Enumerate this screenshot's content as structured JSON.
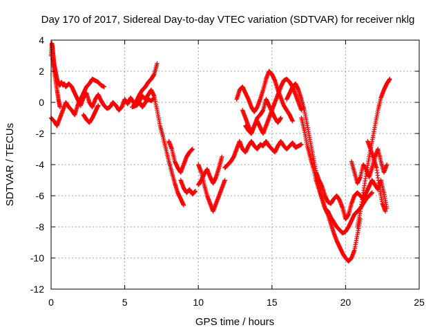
{
  "chart_data": {
    "type": "scatter",
    "title": "Day 170 of 2017, Sidereal Day-to-day VTEC variation (SDTVAR) for receiver nklg",
    "xlabel": "GPS time / hours",
    "ylabel": "SDTVAR / TECUs",
    "xlim": [
      0,
      25
    ],
    "ylim": [
      -12,
      4
    ],
    "x_ticks": [
      0,
      5,
      10,
      15,
      20,
      25
    ],
    "y_ticks": [
      -12,
      -10,
      -8,
      -6,
      -4,
      -2,
      0,
      2,
      4
    ],
    "grid": true,
    "marker": "+",
    "color": "#ff0000",
    "series": [
      {
        "x": [
          0.0,
          0.05,
          0.1,
          0.15,
          0.2,
          0.3,
          0.4,
          0.5,
          0.6,
          0.7,
          0.8,
          0.9,
          1.0,
          1.2,
          1.4,
          1.6,
          1.8,
          2.0,
          2.2,
          2.4,
          2.6,
          2.8,
          3.0,
          3.2,
          3.4,
          3.6,
          3.8,
          4.0,
          4.2,
          4.4,
          4.6,
          4.8,
          5.0,
          5.2,
          5.4,
          5.6,
          5.8,
          6.0,
          6.2,
          6.4,
          6.6,
          6.8,
          7.0,
          7.2,
          7.4,
          7.6,
          7.8,
          8.0,
          8.2,
          8.4,
          8.6,
          8.8,
          9.0
        ],
        "y": [
          3.0,
          3.8,
          3.5,
          3.0,
          2.5,
          2.0,
          1.5,
          1.2,
          1.1,
          1.3,
          1.1,
          1.2,
          1.0,
          1.2,
          1.0,
          0.6,
          0.2,
          -0.2,
          0.3,
          0.6,
          0.0,
          -0.3,
          0.2,
          0.5,
          0.1,
          -0.2,
          -0.4,
          -0.3,
          0.0,
          -0.2,
          -0.5,
          -0.3,
          0.2,
          -0.1,
          0.3,
          0.0,
          -0.2,
          0.1,
          0.4,
          0.2,
          0.5,
          0.8,
          0.4,
          -0.5,
          -1.5,
          -2.2,
          -3.0,
          -3.8,
          -4.5,
          -5.2,
          -5.8,
          -6.2,
          -6.6
        ]
      },
      {
        "x": [
          0.0,
          0.2,
          0.4,
          0.6,
          0.8,
          1.0,
          1.2,
          1.4,
          1.6,
          1.8,
          2.0,
          2.2,
          2.4,
          2.6,
          2.8,
          3.0,
          3.2,
          3.4,
          3.6
        ],
        "y": [
          -1.0,
          -1.2,
          -1.5,
          -1.0,
          -0.5,
          0.0,
          -0.3,
          -0.5,
          -0.8,
          -0.2,
          0.2,
          0.6,
          1.0,
          1.2,
          1.5,
          1.4,
          1.3,
          1.1,
          1.0
        ]
      },
      {
        "x": [
          0.1,
          0.2,
          0.3,
          0.4,
          0.5,
          0.6
        ],
        "y": [
          2.8,
          2.2,
          1.5,
          0.8,
          0.2,
          -0.3
        ]
      },
      {
        "x": [
          2.2,
          2.4,
          2.6,
          2.8,
          3.0,
          3.2
        ],
        "y": [
          -0.8,
          -1.1,
          -1.3,
          -1.0,
          -0.6,
          -0.2
        ]
      },
      {
        "x": [
          5.6,
          5.8,
          6.0,
          6.2,
          6.4,
          6.6,
          6.8,
          7.0,
          7.2
        ],
        "y": [
          -0.2,
          0.1,
          0.5,
          0.8,
          1.0,
          1.3,
          1.5,
          1.8,
          2.5
        ]
      },
      {
        "x": [
          5.5,
          5.8,
          6.0,
          6.2,
          6.4,
          6.6,
          6.8,
          7.0
        ],
        "y": [
          -0.3,
          -0.2,
          0.0,
          -0.3,
          0.0,
          0.2,
          0.1,
          0.3
        ]
      },
      {
        "x": [
          8.0,
          8.2,
          8.4,
          8.6,
          8.8,
          9.0,
          9.2,
          9.4,
          9.6
        ],
        "y": [
          -2.5,
          -3.0,
          -3.8,
          -4.2,
          -4.5,
          -4.0,
          -3.5,
          -3.2,
          -3.0
        ]
      },
      {
        "x": [
          8.8,
          9.0,
          9.2,
          9.4,
          9.6,
          9.8
        ],
        "y": [
          -5.0,
          -5.5,
          -5.8,
          -5.6,
          -5.9,
          -5.7
        ]
      },
      {
        "x": [
          10.0,
          10.2,
          10.4,
          10.6,
          10.8,
          11.0,
          11.2,
          11.4,
          11.6,
          11.8
        ],
        "y": [
          -4.0,
          -4.5,
          -5.3,
          -6.0,
          -6.5,
          -7.0,
          -6.5,
          -6.0,
          -5.5,
          -5.0
        ]
      },
      {
        "x": [
          10.0,
          10.2,
          10.4,
          10.6,
          10.8,
          11.0,
          11.2,
          11.4,
          11.6
        ],
        "y": [
          -5.3,
          -5.0,
          -4.6,
          -4.3,
          -4.8,
          -5.2,
          -4.8,
          -4.2,
          -3.5
        ]
      },
      {
        "x": [
          11.8,
          12.0,
          12.2,
          12.4,
          12.6,
          12.8,
          13.0,
          13.2,
          13.4,
          13.6,
          13.8,
          14.0,
          14.2,
          14.4,
          14.6,
          14.8,
          15.0,
          15.2,
          15.4,
          15.6,
          15.8,
          16.0,
          16.2,
          16.4,
          16.6,
          16.8,
          17.0
        ],
        "y": [
          -4.2,
          -4.0,
          -3.8,
          -3.5,
          -3.0,
          -2.5,
          -3.0,
          -3.2,
          -2.8,
          -2.5,
          -2.8,
          -3.0,
          -2.7,
          -2.8,
          -2.5,
          -2.8,
          -3.0,
          -3.2,
          -2.8,
          -2.5,
          -2.8,
          -3.0,
          -2.8,
          -2.6,
          -2.9,
          -2.8,
          -2.7
        ]
      },
      {
        "x": [
          12.6,
          12.8,
          13.0,
          13.2,
          13.4,
          13.6,
          13.8,
          14.0,
          14.2,
          14.4,
          14.6,
          14.8,
          15.0,
          15.2,
          15.4,
          15.6,
          15.8,
          16.0,
          16.2,
          16.4
        ],
        "y": [
          0.2,
          0.8,
          1.0,
          0.6,
          0.2,
          -0.3,
          -0.6,
          -0.3,
          0.2,
          0.8,
          1.5,
          2.0,
          1.8,
          1.4,
          0.8,
          0.3,
          -0.2,
          -0.5,
          -0.8,
          -1.2
        ]
      },
      {
        "x": [
          13.0,
          13.2,
          13.4,
          13.6,
          13.8,
          14.0,
          14.2,
          14.4,
          14.6,
          14.8,
          15.0,
          15.2,
          15.4,
          15.6,
          15.8,
          16.0,
          16.2,
          16.4,
          16.6,
          16.8,
          17.0
        ],
        "y": [
          -0.5,
          -1.0,
          -1.5,
          -2.0,
          -1.5,
          -1.2,
          -1.6,
          -2.0,
          -1.5,
          -1.0,
          -0.5,
          0.0,
          0.5,
          1.0,
          1.4,
          1.5,
          1.3,
          1.0,
          0.5,
          0.0,
          -0.5
        ]
      },
      {
        "x": [
          13.2,
          13.4,
          13.6,
          13.8,
          14.0,
          14.2,
          14.4,
          14.6,
          14.8,
          15.0,
          15.2,
          15.4,
          15.6
        ],
        "y": [
          -1.5,
          -1.8,
          -2.0,
          -1.5,
          -1.0,
          -0.8,
          -0.5,
          0.2,
          -0.2,
          -0.6,
          -1.0,
          -1.3,
          -1.0
        ]
      },
      {
        "x": [
          16.0,
          16.2,
          16.4,
          16.6,
          16.8,
          17.0,
          17.2,
          17.4,
          17.6,
          17.8,
          18.0,
          18.2,
          18.4,
          18.6,
          18.8,
          19.0,
          19.2,
          19.4,
          19.6,
          19.8,
          20.0,
          20.2,
          20.4,
          20.6,
          20.8,
          21.0
        ],
        "y": [
          0.2,
          0.6,
          1.0,
          1.2,
          0.8,
          0.2,
          -0.5,
          -1.5,
          -2.5,
          -3.5,
          -4.5,
          -5.5,
          -6.2,
          -6.8,
          -7.2,
          -7.8,
          -8.4,
          -8.9,
          -9.3,
          -9.7,
          -10.0,
          -10.2,
          -10.0,
          -9.5,
          -8.5,
          -7.5
        ]
      },
      {
        "x": [
          17.0,
          17.2,
          17.4,
          17.6,
          17.8,
          18.0,
          18.2,
          18.4,
          18.6,
          18.8,
          19.0,
          19.2,
          19.4,
          19.6,
          19.8,
          20.0,
          20.2,
          20.4,
          20.6,
          20.8,
          21.0,
          21.2,
          21.4,
          21.6,
          21.8
        ],
        "y": [
          -1.0,
          -1.8,
          -2.8,
          -3.5,
          -4.2,
          -5.0,
          -5.6,
          -6.2,
          -6.8,
          -7.0,
          -7.4,
          -7.7,
          -8.0,
          -8.2,
          -8.4,
          -8.3,
          -8.0,
          -7.6,
          -7.2,
          -7.0,
          -6.8,
          -6.5,
          -6.2,
          -6.0,
          -5.8
        ]
      },
      {
        "x": [
          18.0,
          18.2,
          18.4,
          18.6,
          18.8,
          19.0,
          19.2,
          19.4,
          19.6,
          19.8,
          20.0,
          20.2,
          20.4,
          20.6,
          20.8,
          21.0,
          21.2,
          21.4,
          21.6,
          21.8,
          22.0,
          22.2,
          22.4,
          22.6,
          22.8
        ],
        "y": [
          -4.5,
          -5.0,
          -5.4,
          -6.0,
          -6.4,
          -6.5,
          -6.2,
          -6.0,
          -6.3,
          -6.8,
          -7.5,
          -7.2,
          -6.5,
          -6.0,
          -5.8,
          -6.0,
          -6.2,
          -5.8,
          -5.4,
          -5.0,
          -5.3,
          -5.6,
          -5.0,
          -5.8,
          -6.8
        ]
      },
      {
        "x": [
          20.8,
          21.0,
          21.2,
          21.4,
          21.6,
          21.8,
          22.0,
          22.2,
          22.4,
          22.6,
          22.8,
          23.0
        ],
        "y": [
          -8.0,
          -7.0,
          -5.8,
          -4.6,
          -3.5,
          -2.5,
          -1.5,
          -0.5,
          0.3,
          0.8,
          1.2,
          1.5
        ]
      },
      {
        "x": [
          20.4,
          20.6,
          20.8,
          21.0,
          21.2,
          21.4,
          21.6,
          21.8,
          22.0,
          22.2,
          22.4,
          22.6,
          22.8
        ],
        "y": [
          -3.8,
          -4.5,
          -5.2,
          -4.8,
          -4.0,
          -4.3,
          -4.8,
          -4.2,
          -3.5,
          -3.0,
          -3.8,
          -4.5,
          -4.0
        ]
      },
      {
        "x": [
          21.5,
          21.7,
          21.9,
          22.1,
          22.3,
          22.5,
          22.7
        ],
        "y": [
          -2.5,
          -3.0,
          -3.6,
          -4.2,
          -5.5,
          -6.5,
          -7.0
        ]
      }
    ]
  }
}
